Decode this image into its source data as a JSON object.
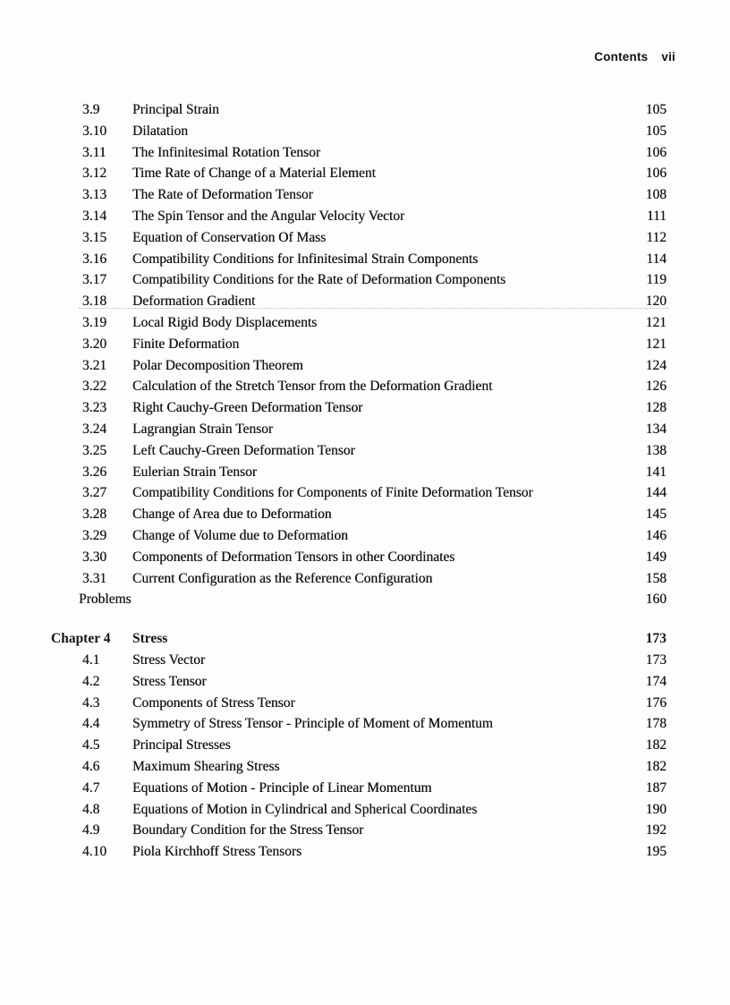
{
  "header": {
    "label": "Contents",
    "folio": "vii"
  },
  "chapter3_rows": [
    {
      "num": "3.9",
      "title": "Principal Strain",
      "page": "105"
    },
    {
      "num": "3.10",
      "title": "Dilatation",
      "page": "105"
    },
    {
      "num": "3.11",
      "title": "The Infinitesimal Rotation Tensor",
      "page": "106"
    },
    {
      "num": "3.12",
      "title": "Time Rate of Change of a Material Element",
      "page": "106"
    },
    {
      "num": "3.13",
      "title": "The Rate of Deformation Tensor",
      "page": "108"
    },
    {
      "num": "3.14",
      "title": "The Spin Tensor and the Angular Velocity Vector",
      "page": "111"
    },
    {
      "num": "3.15",
      "title": "Equation of Conservation Of Mass",
      "page": "112"
    },
    {
      "num": "3.16",
      "title": "Compatibility Conditions for Infinitesimal Strain Components",
      "page": "114"
    },
    {
      "num": "3.17",
      "title": "Compatibility Conditions for the Rate of Deformation Components",
      "page": "119"
    },
    {
      "num": "3.18",
      "title": "Deformation Gradient",
      "page": "120",
      "style": "leader"
    },
    {
      "num": "3.19",
      "title": "Local Rigid Body Displacements",
      "page": "121"
    },
    {
      "num": "3.20",
      "title": "Finite Deformation",
      "page": "121"
    },
    {
      "num": "3.21",
      "title": "Polar Decomposition Theorem",
      "page": "124"
    },
    {
      "num": "3.22",
      "title": "Calculation of the Stretch Tensor from the Deformation Gradient",
      "page": "126"
    },
    {
      "num": "3.23",
      "title": "Right Cauchy-Green Deformation Tensor",
      "page": "128"
    },
    {
      "num": "3.24",
      "title": "Lagrangian Strain Tensor",
      "page": "134"
    },
    {
      "num": "3.25",
      "title": "Left Cauchy-Green Deformation Tensor",
      "page": "138"
    },
    {
      "num": "3.26",
      "title": "Eulerian Strain Tensor",
      "page": "141"
    },
    {
      "num": "3.27",
      "title": "Compatibility Conditions for Components of Finite Deformation Tensor",
      "page": "144"
    },
    {
      "num": "3.28",
      "title": "Change of Area due to Deformation",
      "page": "145"
    },
    {
      "num": "3.29",
      "title": "Change of Volume due to Deformation",
      "page": "146"
    },
    {
      "num": "3.30",
      "title": "Components of Deformation Tensors in other Coordinates",
      "page": "149"
    },
    {
      "num": "3.31",
      "title": "Current Configuration as the Reference Configuration",
      "page": "158"
    },
    {
      "num": "",
      "title": "Problems",
      "page": "160",
      "style": "flush"
    }
  ],
  "chapter4": {
    "label": "Chapter 4",
    "title": "Stress",
    "page": "173",
    "sections": [
      {
        "num": "4.1",
        "title": "Stress Vector",
        "page": "173"
      },
      {
        "num": "4.2",
        "title": "Stress Tensor",
        "page": "174"
      },
      {
        "num": "4.3",
        "title": "Components of Stress Tensor",
        "page": "176"
      },
      {
        "num": "4.4",
        "title": "Symmetry of Stress Tensor - Principle of Moment of Momentum",
        "page": "178"
      },
      {
        "num": "4.5",
        "title": "Principal Stresses",
        "page": "182"
      },
      {
        "num": "4.6",
        "title": "Maximum Shearing Stress",
        "page": "182"
      },
      {
        "num": "4.7",
        "title": "Equations of Motion - Principle of Linear Momentum",
        "page": "187"
      },
      {
        "num": "4.8",
        "title": "Equations of Motion in Cylindrical and Spherical Coordinates",
        "page": "190"
      },
      {
        "num": "4.9",
        "title": "Boundary Condition for the Stress Tensor",
        "page": "192"
      },
      {
        "num": "4.10",
        "title": "Piola Kirchhoff Stress Tensors",
        "page": "195"
      }
    ]
  },
  "colors": {
    "text": "#161616",
    "background": "#fdfdfb",
    "leader_dotted": "#b8b8b8"
  }
}
